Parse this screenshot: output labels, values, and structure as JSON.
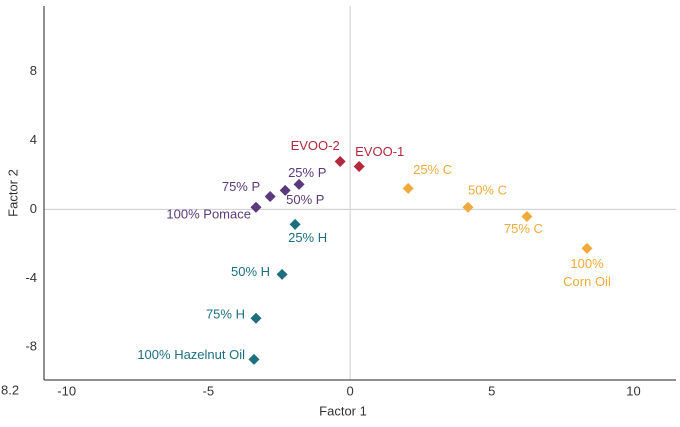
{
  "chart_data": {
    "type": "scatter",
    "x_label": "Factor 1",
    "y_label": "Factor 2",
    "xlim": [
      -10.8,
      11.5
    ],
    "ylim": [
      -9.9,
      11.8
    ],
    "xticks": [
      -10,
      -5,
      0,
      5,
      10
    ],
    "yticks": [
      -8,
      -4,
      0,
      4,
      8
    ],
    "corner_label": "8.2",
    "series": [
      {
        "color": "#b3283c",
        "labels": [
          "EVOO-2",
          "EVOO-1"
        ],
        "x": [
          -0.35,
          0.32
        ],
        "y": [
          2.78,
          2.49
        ]
      },
      {
        "color": "#eeaa3a",
        "labels": [
          "25% C",
          "50% C",
          "75% C",
          "100% Corn Oil"
        ],
        "x": [
          2.05,
          4.16,
          6.24,
          8.36
        ],
        "y": [
          1.22,
          0.12,
          -0.41,
          -2.26
        ]
      },
      {
        "color": "#5a3a7c",
        "labels": [
          "25% P",
          "50% P",
          "75% P",
          "100% Pomace"
        ],
        "x": [
          -1.8,
          -2.29,
          -2.82,
          -3.32
        ],
        "y": [
          1.45,
          1.1,
          0.75,
          0.12
        ]
      },
      {
        "color": "#1b6f80",
        "labels": [
          "25% H",
          "50% H",
          "75% H",
          "100% Hazelnut  Oil"
        ],
        "x": [
          -1.94,
          -2.4,
          -3.32,
          -3.39
        ],
        "y": [
          -0.87,
          -3.77,
          -6.32,
          -8.7
        ]
      }
    ]
  }
}
